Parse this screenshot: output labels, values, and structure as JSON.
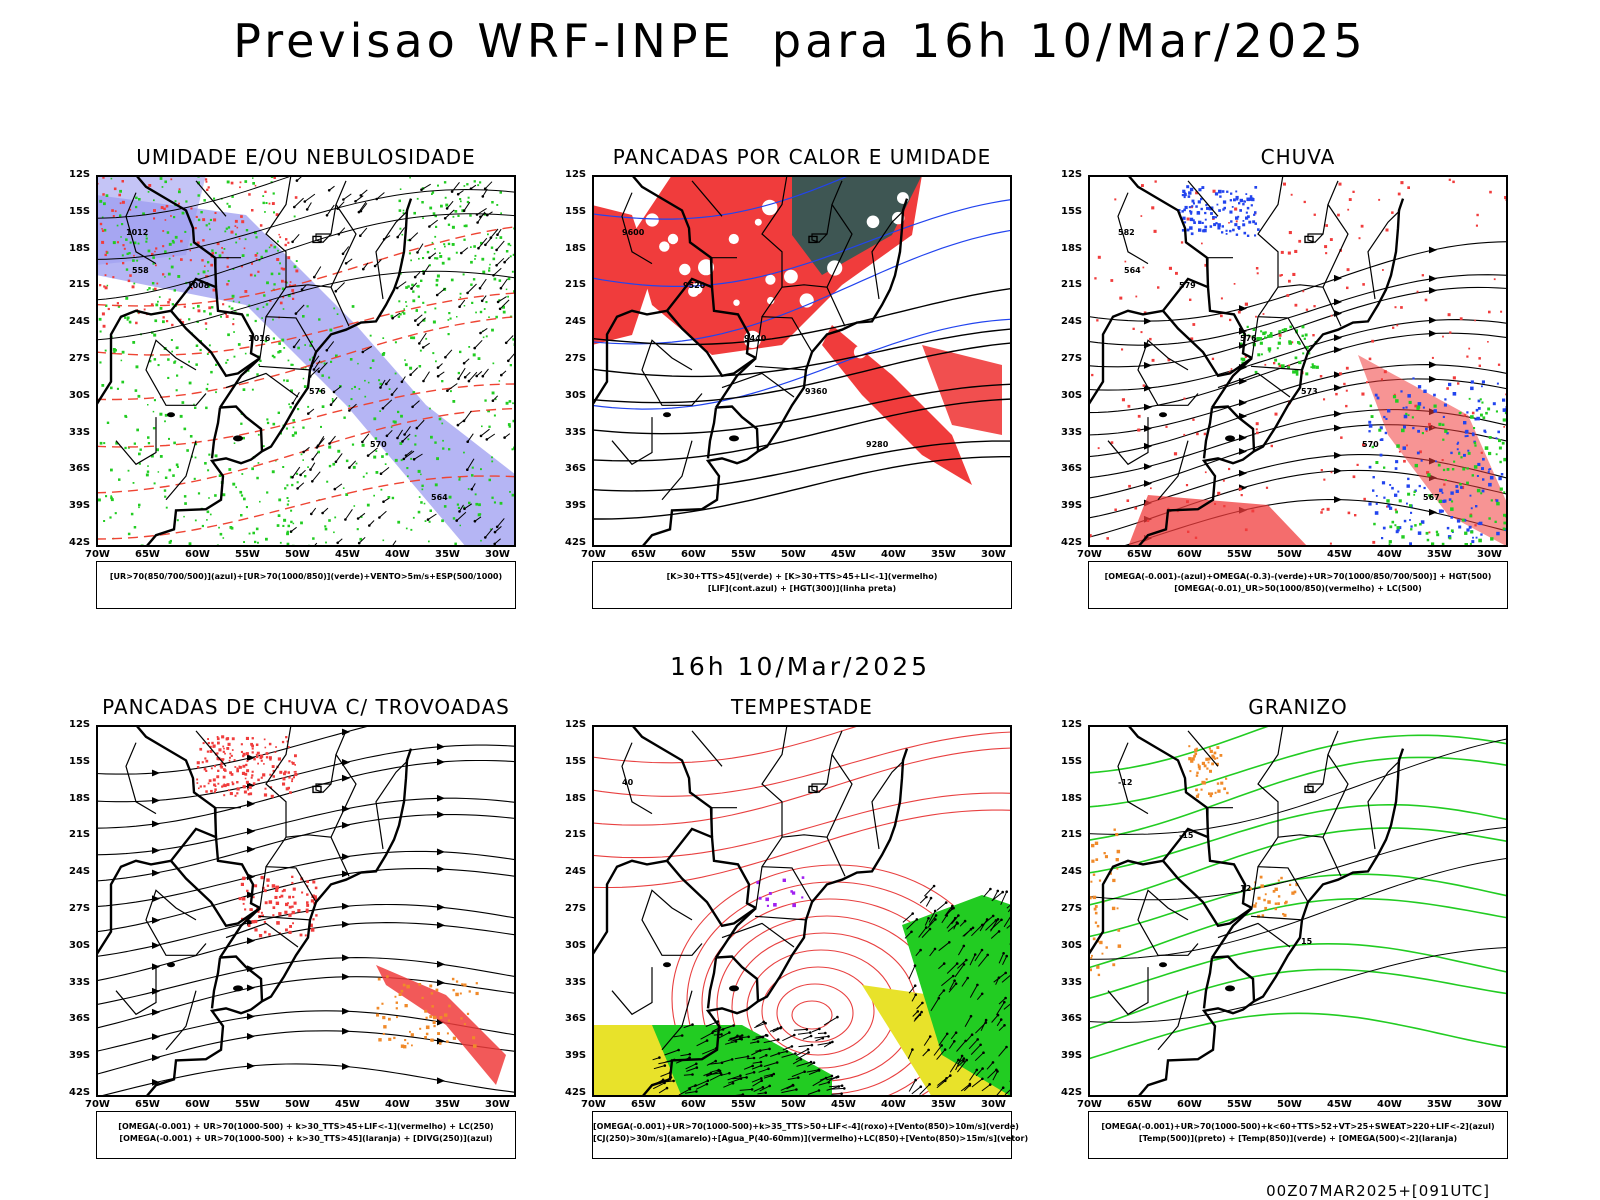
{
  "title": "Previsao WRF-INPE  para 16h 10/Mar/2025",
  "mid_label": "16h 10/Mar/2025",
  "footer": "00Z07MAR2025+[091UTC]",
  "lat_labels": [
    "12S",
    "15S",
    "18S",
    "21S",
    "24S",
    "27S",
    "30S",
    "33S",
    "36S",
    "39S",
    "42S"
  ],
  "lon_labels": [
    "70W",
    "65W",
    "60W",
    "55W",
    "50W",
    "45W",
    "40W",
    "35W",
    "30W"
  ],
  "colors": {
    "red": "#f03c3c",
    "green": "#22cc22",
    "blue": "#2244ee",
    "lavender": "#9c9cf0",
    "teal": "#1f5a57",
    "orange": "#f08a2a",
    "yellow": "#e8e22a",
    "purple": "#a020f0"
  },
  "panels": [
    {
      "title": "UMIDADE E/OU NEBULOSIDADE",
      "legend": [
        "[UR>70(850/700/500)](azul)+[UR>70(1000/850)](verde)+VENTO>5m/s+ESP(500/1000)"
      ],
      "contour_labels": [
        "1012",
        "1008",
        "1016",
        "576",
        "570",
        "564",
        "558"
      ]
    },
    {
      "title": "PANCADAS POR CALOR E UMIDADE",
      "legend": [
        "[K>30+TTS>45](verde) + [K>30+TTS>45+LI<-1](vermelho)",
        "[LIF](cont.azul) + [HGT(300)](linha preta)"
      ],
      "contour_labels": [
        "9600",
        "9520",
        "9440",
        "9360",
        "9280"
      ]
    },
    {
      "title": "CHUVA",
      "legend": [
        "[OMEGA(-0.001)-(azul)+OMEGA(-0.3)-(verde)+UR>70(1000/850/700/500)] + HGT(500)",
        "[OMEGA(-0.01)_UR>50(1000/850)(vermelho) + LC(500)"
      ],
      "contour_labels": [
        "582",
        "579",
        "576",
        "573",
        "570",
        "567",
        "564"
      ]
    },
    {
      "title": "PANCADAS DE CHUVA C/ TROVOADAS",
      "legend": [
        "[OMEGA(-0.001) + UR>70(1000-500) + k>30_TTS>45+LIF<-1](vermelho) + LC(250)",
        "[OMEGA(-0.001) + UR>70(1000-500) + k>30_TTS>45](laranja) + [DIVG(250)](azul)"
      ],
      "contour_labels": []
    },
    {
      "title": "TEMPESTADE",
      "legend": [
        "[OMEGA(-0.001)+UR>70(1000-500)+k>35_TTS>50+LIF<-4](roxo)+[Vento(850)>10m/s](verde)",
        "[CJ(250)>30m/s](amarelo)+[Agua_P(40-60mm)](vermelho)+LC(850)+[Vento(850)>15m/s](vetor)"
      ],
      "contour_labels": [
        "40"
      ]
    },
    {
      "title": "GRANIZO",
      "legend": [
        "[OMEGA(-0.001)+UR>70(1000-500)+k<60+TTS>52+VT>25+SWEAT>220+LIF<-2](azul)",
        "[Temp(500)](preto) + [Temp(850)](verde) + [OMEGA(500)<-2](laranja)"
      ],
      "contour_labels": [
        "-12",
        "-15",
        "12",
        "15"
      ]
    }
  ]
}
